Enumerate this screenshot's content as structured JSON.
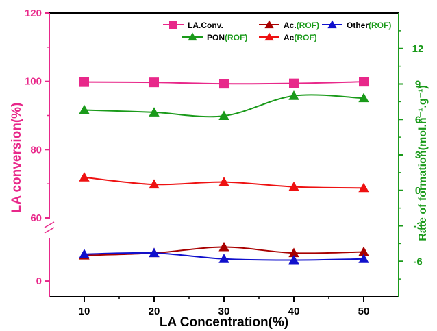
{
  "chart_data": {
    "type": "line",
    "xlabel": "LA Concentration(%)",
    "ylabel_left": "LA conversion(%)",
    "ylabel_right": "Rate of formation(mol.h⁻¹.g⁻¹)",
    "x": [
      10,
      20,
      30,
      40,
      50
    ],
    "x_ticks": [
      "10",
      "20",
      "30",
      "40",
      "50"
    ],
    "left_upper_ticks": [
      "60",
      "80",
      "100",
      "120"
    ],
    "left_lower_ticks": [
      "0"
    ],
    "right_ticks": [
      "-6",
      "-3",
      "0",
      "3",
      "6",
      "9",
      "12"
    ],
    "left_upper_range": [
      60,
      120
    ],
    "left_lower_range": [
      -5,
      12
    ],
    "right_range": [
      -9,
      15
    ],
    "axis_break": "left axis broken between 0 and 60",
    "grid": false,
    "legend_position": "top-right",
    "series": [
      {
        "name": "LA.Conv.",
        "axis": "left",
        "color": "#e8288a",
        "marker": "square",
        "values": [
          99.8,
          99.7,
          99.3,
          99.4,
          99.9
        ]
      },
      {
        "name": "Ac.",
        "name_suffix": "(ROF)",
        "axis": "right",
        "color": "#a80000",
        "marker": "triangle",
        "values": [
          -5.5,
          -5.3,
          -4.8,
          -5.3,
          -5.2
        ]
      },
      {
        "name": "Other",
        "name_suffix": "(ROF)",
        "axis": "right",
        "color": "#1010cc",
        "marker": "triangle",
        "values": [
          -5.4,
          -5.3,
          -5.8,
          -5.9,
          -5.8
        ]
      },
      {
        "name": "PON",
        "name_suffix": "(ROF)",
        "axis": "right",
        "color": "#1a9a1a",
        "marker": "triangle",
        "values": [
          6.8,
          6.6,
          6.3,
          8.0,
          7.8
        ]
      },
      {
        "name": "Ac",
        "name_suffix": "(ROF)",
        "axis": "right",
        "color": "#ee1111",
        "marker": "triangle",
        "values": [
          1.1,
          0.5,
          0.7,
          0.3,
          0.2
        ]
      }
    ],
    "colors": {
      "left_axis": "#e8288a",
      "right_axis": "#1a9a1a",
      "x_axis": "#000000"
    }
  }
}
